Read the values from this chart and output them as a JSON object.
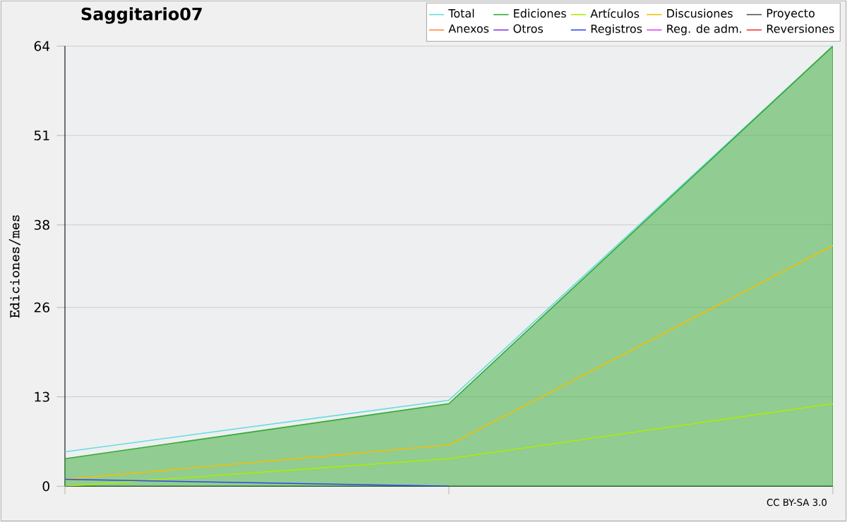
{
  "chart_data": {
    "type": "line",
    "title": "Saggitario07",
    "ylabel": "Ediciones/mes",
    "categories": [
      null,
      null,
      null
    ],
    "ylim": [
      0,
      64
    ],
    "yticks": [
      0,
      13,
      26,
      38,
      51,
      64
    ],
    "grid": "y",
    "legend": "top right",
    "marker": "none",
    "annotations": [
      "CC BY-SA 3.0"
    ],
    "series": [
      {
        "name": "Total",
        "color": "#66dddd",
        "values": [
          5,
          12.5,
          64
        ]
      },
      {
        "name": "Ediciones",
        "color": "#33aa33",
        "type": "area",
        "values": [
          4,
          12,
          64
        ]
      },
      {
        "name": "Artículos",
        "color": "#aaee00",
        "values": [
          0,
          4,
          12
        ]
      },
      {
        "name": "Discusiones",
        "color": "#f0c000",
        "values": [
          1,
          6,
          35
        ]
      },
      {
        "name": "Proyecto",
        "color": "#555555",
        "values": [
          null,
          null,
          null
        ]
      },
      {
        "name": "Anexos",
        "color": "#ff8833",
        "values": [
          null,
          null,
          null
        ]
      },
      {
        "name": "Otros",
        "color": "#8833dd",
        "values": [
          null,
          null,
          null
        ]
      },
      {
        "name": "Registros",
        "color": "#3344ee",
        "values": [
          1,
          0,
          null
        ]
      },
      {
        "name": "Reg. de adm.",
        "color": "#dd44ee",
        "values": [
          null,
          null,
          null
        ]
      },
      {
        "name": "Reversiones",
        "color": "#ee3333",
        "values": [
          null,
          null,
          null
        ]
      }
    ]
  }
}
